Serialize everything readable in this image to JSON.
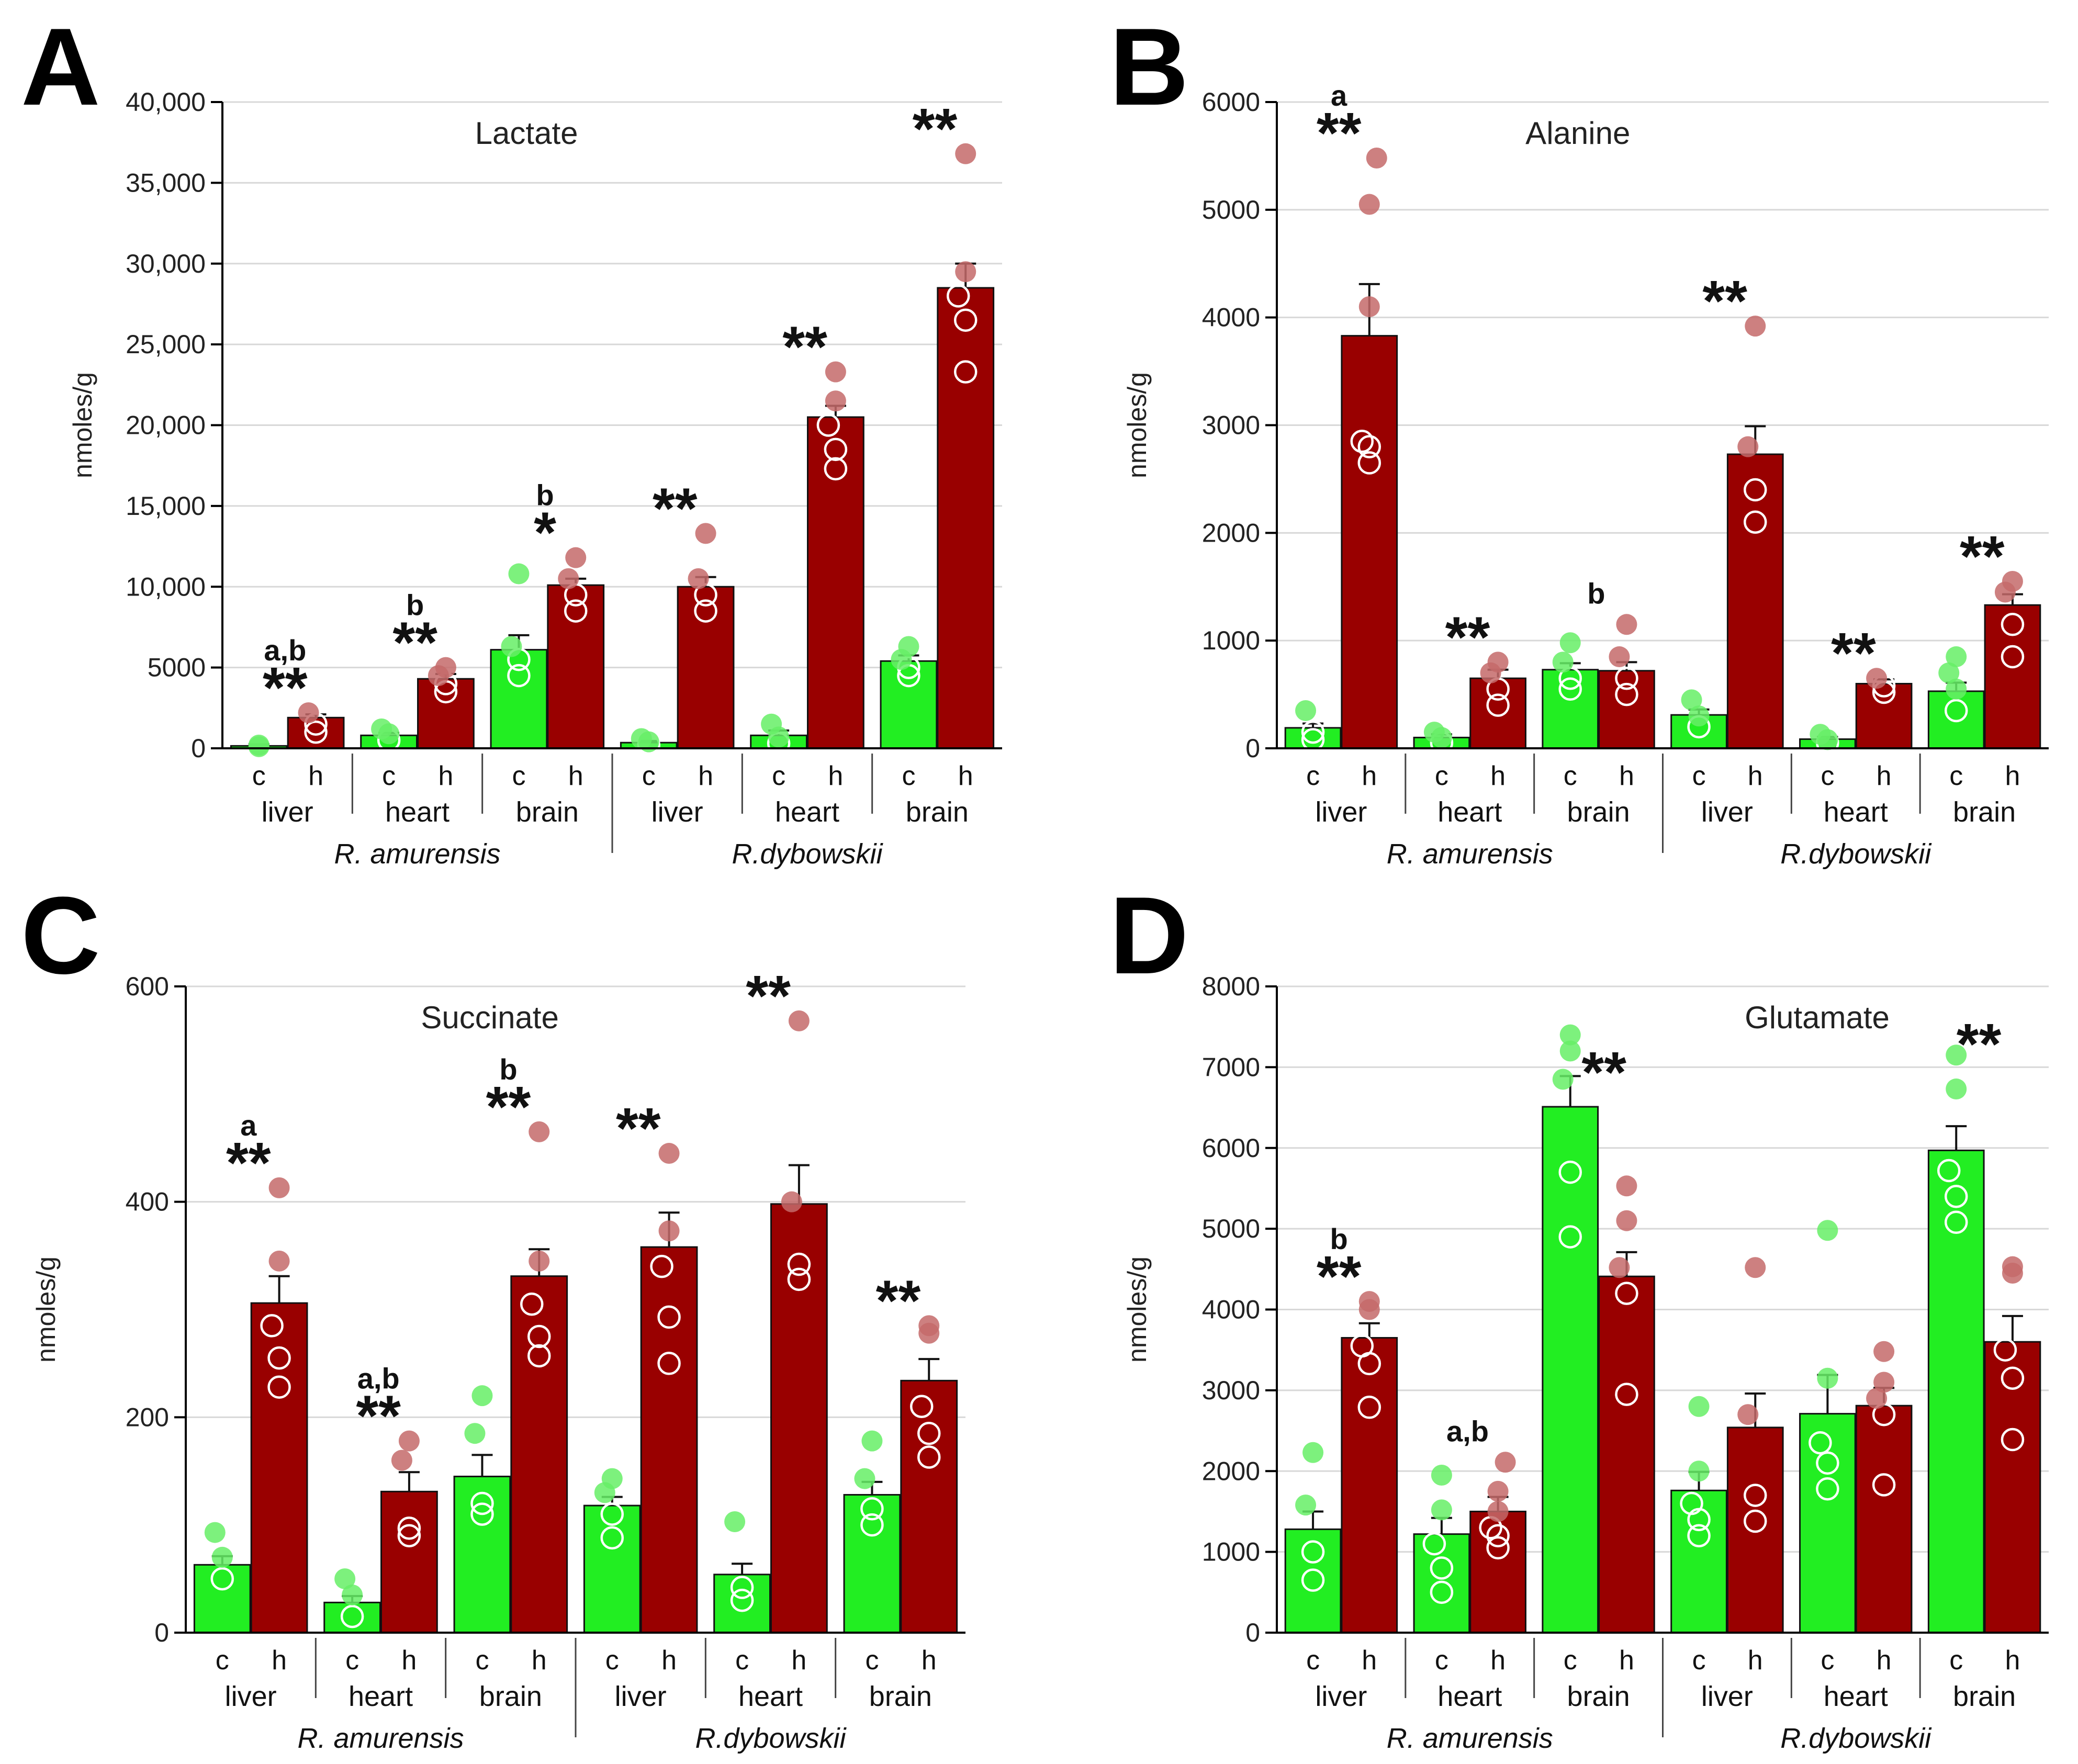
{
  "panel_letters": [
    "A",
    "B",
    "C",
    "D"
  ],
  "colors": {
    "control": "#22ee22",
    "hypoxia": "#990000",
    "control_dot": "#66ee66",
    "hypoxia_dot": "#c46a6a",
    "grid": "#d8d8d8",
    "axis": "#000000"
  },
  "chart_data": [
    {
      "type": "bar",
      "panel": "A",
      "title": "Lactate",
      "ylabel": "nmoles/g",
      "ylim": [
        0,
        40000
      ],
      "yticks": [
        0,
        5000,
        10000,
        15000,
        20000,
        25000,
        30000,
        35000,
        40000
      ],
      "ytick_labels": [
        "0",
        "5000",
        "10,000",
        "15,000",
        "20,000",
        "25,000",
        "30,000",
        "35,000",
        "40,000"
      ],
      "conditions": [
        "c",
        "h"
      ],
      "tissues": [
        "liver",
        "heart",
        "brain",
        "liver",
        "heart",
        "brain"
      ],
      "species": [
        "R. amurensis",
        "R.dybowskii"
      ],
      "series": [
        {
          "name": "c",
          "values": [
            150,
            800,
            6100,
            350,
            800,
            5400
          ],
          "errors": [
            100,
            150,
            900,
            100,
            300,
            350
          ]
        },
        {
          "name": "h",
          "values": [
            1900,
            4300,
            10100,
            10000,
            20500,
            28500
          ],
          "errors": [
            200,
            300,
            400,
            600,
            700,
            1500
          ]
        }
      ],
      "points": {
        "c": [
          [
            100,
            200
          ],
          [
            500,
            900,
            1200
          ],
          [
            4500,
            5500,
            6300,
            10800
          ],
          [
            200,
            400,
            600
          ],
          [
            300,
            700,
            1500
          ],
          [
            4500,
            5000,
            5500,
            6300
          ]
        ],
        "h": [
          [
            1000,
            1500,
            2200
          ],
          [
            3500,
            4000,
            4500,
            5000
          ],
          [
            8500,
            9500,
            10500,
            11800
          ],
          [
            8500,
            9500,
            10500,
            13300
          ],
          [
            17300,
            18500,
            20000,
            21500,
            23300
          ],
          [
            23300,
            26500,
            28000,
            29500,
            36800
          ]
        ]
      },
      "annotations": [
        {
          "group": 0,
          "stars": "**",
          "letter": "a,b"
        },
        {
          "group": 1,
          "stars": "**",
          "letter": "b"
        },
        {
          "group": 2,
          "stars": "*",
          "letter": "b"
        },
        {
          "group": 3,
          "stars": "**",
          "letter": ""
        },
        {
          "group": 4,
          "stars": "**",
          "letter": ""
        },
        {
          "group": 5,
          "stars": "**",
          "letter": ""
        }
      ]
    },
    {
      "type": "bar",
      "panel": "B",
      "title": "Alanine",
      "ylabel": "nmoles/g",
      "ylim": [
        0,
        6000
      ],
      "yticks": [
        0,
        1000,
        2000,
        3000,
        4000,
        5000,
        6000
      ],
      "ytick_labels": [
        "0",
        "1000",
        "2000",
        "3000",
        "4000",
        "5000",
        "6000"
      ],
      "conditions": [
        "c",
        "h"
      ],
      "tissues": [
        "liver",
        "heart",
        "brain",
        "liver",
        "heart",
        "brain"
      ],
      "species": [
        "R. amurensis",
        "R.dybowskii"
      ],
      "series": [
        {
          "name": "c",
          "values": [
            190,
            100,
            730,
            310,
            85,
            530
          ],
          "errors": [
            40,
            30,
            60,
            50,
            20,
            80
          ]
        },
        {
          "name": "h",
          "values": [
            3830,
            650,
            720,
            2730,
            600,
            1330
          ],
          "errors": [
            480,
            80,
            80,
            260,
            40,
            100
          ]
        }
      ],
      "points": {
        "c": [
          [
            80,
            150,
            350
          ],
          [
            50,
            100,
            150
          ],
          [
            550,
            650,
            800,
            980
          ],
          [
            200,
            300,
            450
          ],
          [
            50,
            80,
            130
          ],
          [
            350,
            550,
            700,
            850
          ]
        ],
        "h": [
          [
            2650,
            2800,
            2850,
            4100,
            5050,
            5480
          ],
          [
            400,
            550,
            700,
            800
          ],
          [
            500,
            650,
            850,
            1150
          ],
          [
            2100,
            2400,
            2800,
            3920
          ],
          [
            520,
            580,
            650
          ],
          [
            850,
            1150,
            1450,
            1550
          ]
        ]
      },
      "annotations": [
        {
          "group": 0,
          "stars": "**",
          "letter": "a"
        },
        {
          "group": 1,
          "stars": "**",
          "letter": ""
        },
        {
          "group": 2,
          "stars": "",
          "letter": "b"
        },
        {
          "group": 3,
          "stars": "**",
          "letter": ""
        },
        {
          "group": 4,
          "stars": "**",
          "letter": ""
        },
        {
          "group": 5,
          "stars": "**",
          "letter": ""
        }
      ]
    },
    {
      "type": "bar",
      "panel": "C",
      "title": "Succinate",
      "ylabel": "nmoles/g",
      "ylim": [
        0,
        600
      ],
      "yticks": [
        0,
        200,
        400,
        600
      ],
      "ytick_labels": [
        "0",
        "200",
        "400",
        "600"
      ],
      "conditions": [
        "c",
        "h"
      ],
      "tissues": [
        "liver",
        "heart",
        "brain",
        "liver",
        "heart",
        "brain"
      ],
      "species": [
        "R. amurensis",
        "R.dybowskii"
      ],
      "series": [
        {
          "name": "c",
          "values": [
            63,
            28,
            145,
            118,
            54,
            128
          ],
          "errors": [
            8,
            6,
            20,
            8,
            10,
            12
          ]
        },
        {
          "name": "h",
          "values": [
            306,
            131,
            331,
            358,
            398,
            234
          ],
          "errors": [
            25,
            18,
            25,
            32,
            36,
            20
          ]
        }
      ],
      "points": {
        "c": [
          [
            50,
            70,
            93
          ],
          [
            15,
            35,
            50
          ],
          [
            110,
            120,
            185,
            220
          ],
          [
            88,
            110,
            130,
            143
          ],
          [
            30,
            42,
            103
          ],
          [
            100,
            115,
            143,
            178
          ]
        ],
        "h": [
          [
            228,
            255,
            285,
            345,
            413
          ],
          [
            90,
            97,
            160,
            178
          ],
          [
            257,
            275,
            305,
            345,
            465
          ],
          [
            250,
            293,
            340,
            373,
            445
          ],
          [
            328,
            342,
            400,
            568
          ],
          [
            163,
            185,
            210,
            278,
            285
          ]
        ]
      },
      "annotations": [
        {
          "group": 0,
          "stars": "**",
          "letter": "a"
        },
        {
          "group": 1,
          "stars": "**",
          "letter": "a,b"
        },
        {
          "group": 2,
          "stars": "**",
          "letter": "b"
        },
        {
          "group": 3,
          "stars": "**",
          "letter": ""
        },
        {
          "group": 4,
          "stars": "**",
          "letter": ""
        },
        {
          "group": 5,
          "stars": "**",
          "letter": ""
        }
      ]
    },
    {
      "type": "bar",
      "panel": "D",
      "title": "Glutamate",
      "ylabel": "nmoles/g",
      "ylim": [
        0,
        8000
      ],
      "yticks": [
        0,
        1000,
        2000,
        3000,
        4000,
        5000,
        6000,
        7000,
        8000
      ],
      "ytick_labels": [
        "0",
        "1000",
        "2000",
        "3000",
        "4000",
        "5000",
        "6000",
        "7000",
        "8000"
      ],
      "conditions": [
        "c",
        "h"
      ],
      "tissues": [
        "liver",
        "heart",
        "brain",
        "liver",
        "heart",
        "brain"
      ],
      "species": [
        "R. amurensis",
        "R.dybowskii"
      ],
      "series": [
        {
          "name": "c",
          "values": [
            1280,
            1220,
            6510,
            1760,
            2710,
            5970
          ],
          "errors": [
            220,
            200,
            380,
            230,
            480,
            300
          ]
        },
        {
          "name": "h",
          "values": [
            3650,
            1500,
            4410,
            2540,
            2810,
            3600
          ],
          "errors": [
            180,
            180,
            300,
            420,
            220,
            320
          ]
        }
      ],
      "points": {
        "c": [
          [
            650,
            1000,
            1580,
            2230
          ],
          [
            500,
            800,
            1100,
            1520,
            1950
          ],
          [
            4900,
            5700,
            6850,
            7200,
            7400
          ],
          [
            1200,
            1400,
            1600,
            2000,
            2800
          ],
          [
            1780,
            2100,
            2350,
            3150,
            4980
          ],
          [
            5080,
            5400,
            5720,
            6730,
            7150
          ]
        ],
        "h": [
          [
            2790,
            3330,
            3550,
            4000,
            4100
          ],
          [
            1050,
            1200,
            1300,
            1500,
            1750,
            2110
          ],
          [
            2950,
            4200,
            4520,
            5100,
            5530
          ],
          [
            1380,
            1700,
            2700,
            4520
          ],
          [
            1830,
            2700,
            2900,
            3100,
            3480
          ],
          [
            2390,
            3150,
            3500,
            4450,
            4530
          ]
        ]
      },
      "annotations": [
        {
          "group": 0,
          "stars": "**",
          "letter": "b"
        },
        {
          "group": 1,
          "stars": "",
          "letter": "a,b"
        },
        {
          "group": 2,
          "stars": "**",
          "letter": ""
        },
        {
          "group": 3,
          "stars": "",
          "letter": ""
        },
        {
          "group": 4,
          "stars": "",
          "letter": ""
        },
        {
          "group": 5,
          "stars": "**",
          "letter": ""
        }
      ]
    }
  ]
}
